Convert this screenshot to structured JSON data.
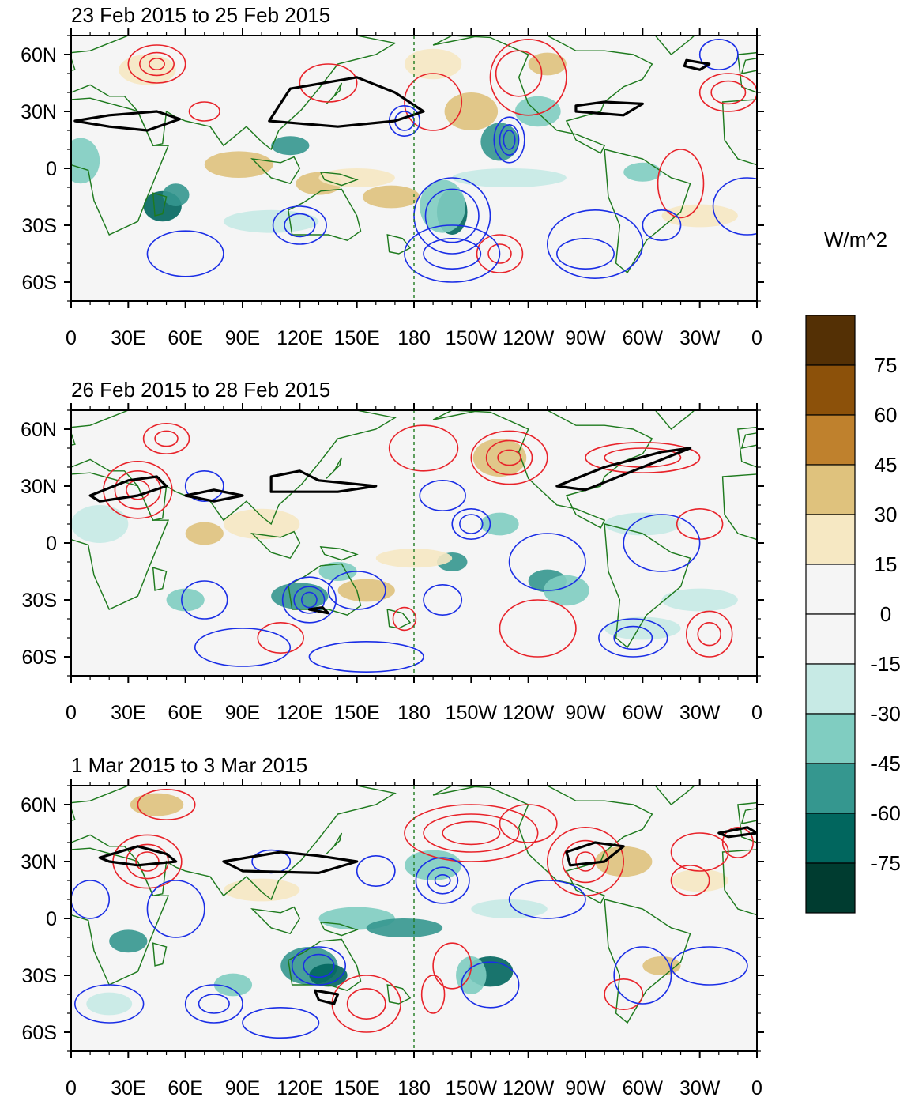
{
  "colorbar": {
    "units": "W/m^2",
    "labels": [
      "75",
      "60",
      "45",
      "30",
      "15",
      "0",
      "-15",
      "-30",
      "-45",
      "-60",
      "-75"
    ],
    "colors": [
      "#543005",
      "#8c510a",
      "#bf812d",
      "#dfc27d",
      "#f6e8c3",
      "#f5f5f5",
      "#f5f5f5",
      "#c7eae5",
      "#80cdc1",
      "#35978f",
      "#01665e",
      "#003c30"
    ]
  },
  "axes": {
    "x_ticks": [
      "0",
      "30E",
      "60E",
      "90E",
      "120E",
      "150E",
      "180",
      "150W",
      "120W",
      "90W",
      "60W",
      "30W",
      "0"
    ],
    "y_ticks": [
      "60N",
      "30N",
      "0",
      "30S",
      "60S"
    ]
  },
  "palette": {
    "positive_contour": "#e8232a",
    "negative_contour": "#1a2ee6",
    "jet_contour": "#000000",
    "coastline": "#1e7a1e",
    "background": "#f5f5f5"
  },
  "panels": [
    {
      "title": "23 Feb 2015 to 25 Feb 2015"
    },
    {
      "title": "26 Feb 2015 to 28 Feb 2015"
    },
    {
      "title": "1 Mar 2015 to 3 Mar 2015"
    }
  ]
}
